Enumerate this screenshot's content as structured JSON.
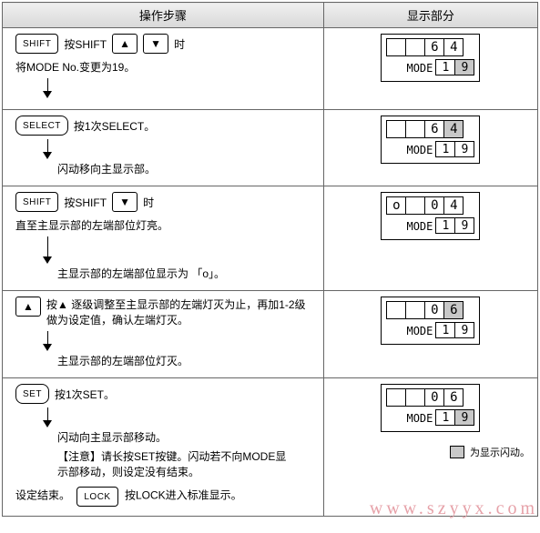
{
  "header": {
    "left": "操作步骤",
    "right": "显示部分"
  },
  "buttons": {
    "shift": "SHIFT",
    "select": "SELECT",
    "set": "SET",
    "lock": "LOCK",
    "up": "▲",
    "down": "▼"
  },
  "text": {
    "s1a": "按SHIFT",
    "s1b": "时",
    "s1c": "将MODE No.变更为19。",
    "s2a": "按1次SELECT。",
    "s2b": "闪动移向主显示部。",
    "s3a": "按SHIFT",
    "s3b": "时",
    "s3c": "直至主显示部的左端部位灯亮。",
    "s3d": "主显示部的左端部位显示为 「o」。",
    "s4a": "按▲ 逐级调整至主显示部的左端灯灭为止，再加1-2级做为设定值，确认左端灯灭。",
    "s4b": "主显示部的左端部位灯灭。",
    "s5a": "按1次SET。",
    "s5b": "闪动向主显示部移动。",
    "s5c": "【注意】请长按SET按键。闪动若不向MODE显示部移动，则设定没有结束。",
    "s6a": "设定结束。",
    "s6b": "按LOCK进入标准显示。"
  },
  "disp": {
    "mode_label": "MODE",
    "d1": {
      "top": [
        "",
        "",
        "6",
        "4"
      ],
      "hl_top": [],
      "sub": [
        "1",
        "9"
      ],
      "hl_sub": [
        1
      ]
    },
    "d2": {
      "top": [
        "",
        "",
        "6",
        "4"
      ],
      "hl_top": [
        3
      ],
      "sub": [
        "1",
        "9"
      ],
      "hl_sub": []
    },
    "d3": {
      "top": [
        "o",
        "",
        "0",
        "4"
      ],
      "hl_top": [],
      "sub": [
        "1",
        "9"
      ],
      "hl_sub": []
    },
    "d4": {
      "top": [
        "",
        "",
        "0",
        "6"
      ],
      "hl_top": [
        3
      ],
      "sub": [
        "1",
        "9"
      ],
      "hl_sub": []
    },
    "d5": {
      "top": [
        "",
        "",
        "0",
        "6"
      ],
      "hl_top": [],
      "sub": [
        "1",
        "9"
      ],
      "hl_sub": [
        1
      ]
    }
  },
  "legend": "为显示闪动。",
  "watermark": "www.szyyx.com"
}
